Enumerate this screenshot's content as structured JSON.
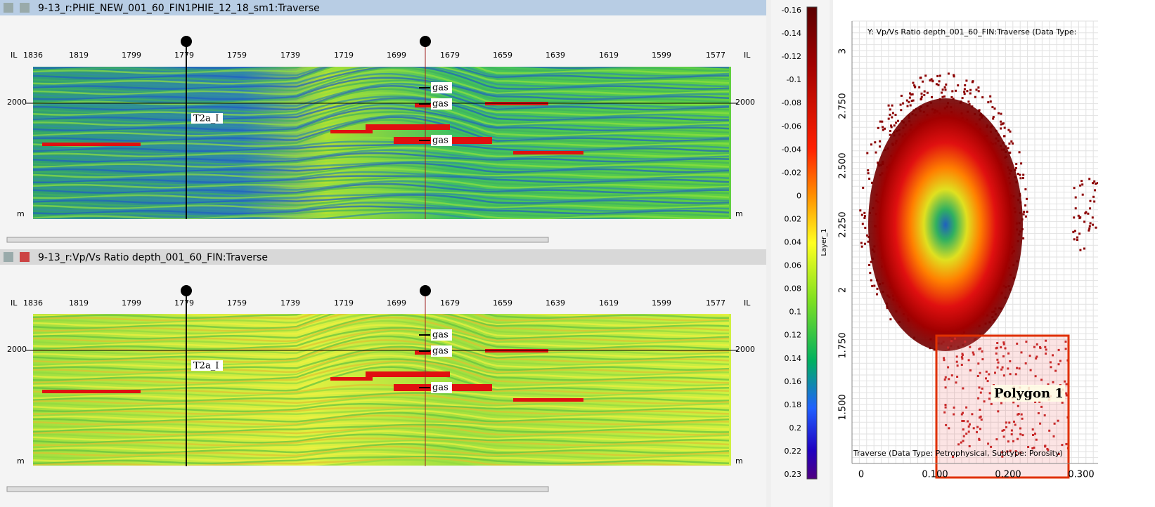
{
  "panels": [
    {
      "title": "9-13_r:PHIE_NEW_001_60_FIN1PHIE_12_18_sm1:Traverse",
      "il_label": "IL",
      "inlines": [
        "1836",
        "1819",
        "1799",
        "1779",
        "1759",
        "1739",
        "1719",
        "1699",
        "1679",
        "1659",
        "1639",
        "1619",
        "1599",
        "1577"
      ],
      "depth": "2000",
      "unit": "m",
      "horizon": "T2a_I",
      "markers": [
        "gas",
        "gas",
        "gas"
      ]
    },
    {
      "title": "9-13_r:Vp/Vs Ratio depth_001_60_FIN:Traverse",
      "il_label": "IL",
      "inlines": [
        "1836",
        "1819",
        "1799",
        "1779",
        "1759",
        "1739",
        "1719",
        "1699",
        "1679",
        "1659",
        "1639",
        "1619",
        "1599",
        "1577"
      ],
      "depth": "2000",
      "unit": "m",
      "horizon": "T2a_I",
      "markers": [
        "gas",
        "gas",
        "gas"
      ]
    }
  ],
  "colorbar": {
    "label": "Layer_1",
    "ticks": [
      "-0.16",
      "-0.14",
      "-0.12",
      "-0.1",
      "-0.08",
      "-0.06",
      "-0.04",
      "-0.02",
      "0",
      "0.02",
      "0.04",
      "0.06",
      "0.08",
      "0.1",
      "0.12",
      "0.14",
      "0.16",
      "0.18",
      "0.2",
      "0.22",
      "0.23"
    ]
  },
  "crossplot": {
    "y_title": "Y: Vp/Vs Ratio depth_001_60_FIN:Traverse (Data Type:",
    "x_title": "Traverse (Data Type: Petrophysical, Subtype: Porosity)",
    "yticks": [
      "3",
      "2.750",
      "2.500",
      "2.250",
      "2",
      "1.750",
      "1.500"
    ],
    "xticks": [
      "0",
      "0.100",
      "0.200",
      "0.300"
    ],
    "polygon": "Polygon 1"
  }
}
